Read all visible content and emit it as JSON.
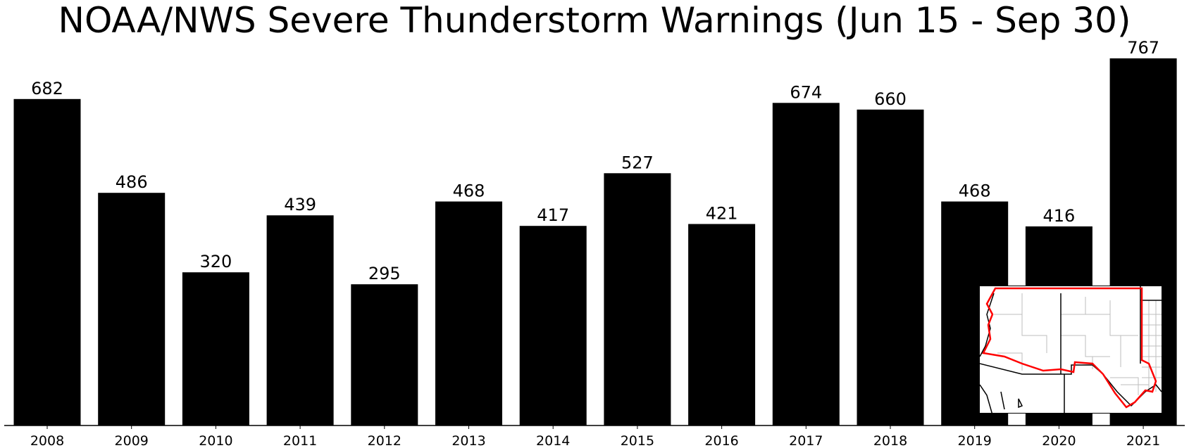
{
  "chart_data": {
    "type": "bar",
    "title": "NOAA/NWS Severe Thunderstorm Warnings (Jun 15 - Sep 30)",
    "categories": [
      "2008",
      "2009",
      "2010",
      "2011",
      "2012",
      "2013",
      "2014",
      "2015",
      "2016",
      "2017",
      "2018",
      "2019",
      "2020",
      "2021"
    ],
    "values": [
      682,
      486,
      320,
      439,
      295,
      468,
      417,
      527,
      421,
      674,
      660,
      468,
      416,
      767
    ],
    "xlabel": "",
    "ylabel": "",
    "ylim": [
      0,
      767
    ],
    "grid": false,
    "bar_color": "#000000",
    "data_labels": true,
    "inset": "map of warning region outlined in red",
    "inset_outline_color": "#ff0000"
  }
}
